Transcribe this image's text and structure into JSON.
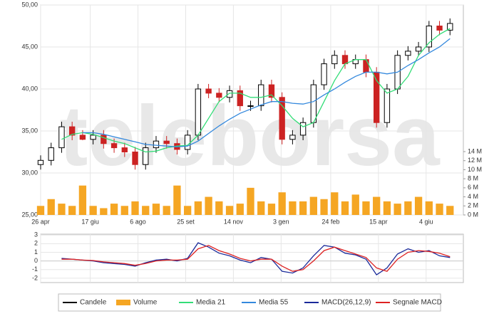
{
  "watermark": "teleborsa",
  "chart_data": [
    {
      "type": "candlestick",
      "x": [
        0,
        11,
        22,
        33,
        44,
        55,
        66,
        77,
        88,
        99,
        110,
        121,
        132,
        143,
        154,
        165,
        176,
        187,
        198,
        209,
        220,
        231,
        242,
        253,
        264,
        275,
        286,
        297,
        308,
        319,
        330,
        341,
        352,
        363,
        374,
        385,
        396,
        407,
        418,
        429
      ],
      "xlim": [
        0,
        443
      ],
      "xticks": [
        {
          "value": 0,
          "label": "26 apr"
        },
        {
          "value": 52,
          "label": "17 giu"
        },
        {
          "value": 102,
          "label": "6 ago"
        },
        {
          "value": 152,
          "label": "25 set"
        },
        {
          "value": 202,
          "label": "14 nov"
        },
        {
          "value": 252,
          "label": "3 gen"
        },
        {
          "value": 304,
          "label": "24 feb"
        },
        {
          "value": 354,
          "label": "15 apr"
        },
        {
          "value": 404,
          "label": "4 giu"
        }
      ],
      "ylim": [
        25,
        50
      ],
      "yticks": [
        {
          "value": 50,
          "label": "50,00"
        },
        {
          "value": 45,
          "label": "45,00"
        },
        {
          "value": 40,
          "label": "40,00"
        },
        {
          "value": 35,
          "label": "35,00"
        },
        {
          "value": 30,
          "label": "30,00"
        },
        {
          "value": 25,
          "label": "25,00"
        }
      ],
      "y2lim": [
        0,
        14
      ],
      "y2ticks": [
        {
          "value": 14,
          "label": "14 M"
        },
        {
          "value": 12,
          "label": "12 M"
        },
        {
          "value": 10,
          "label": "10 M"
        },
        {
          "value": 8,
          "label": "8 M"
        },
        {
          "value": 6,
          "label": "6 M"
        },
        {
          "value": 4,
          "label": "4 M"
        },
        {
          "value": 2,
          "label": "2 M"
        },
        {
          "value": 0,
          "label": "0 M"
        }
      ],
      "grid": true,
      "series": [
        {
          "name": "Candele",
          "color": "#000000",
          "down_color": "#cc2222",
          "open": [
            31,
            31.5,
            33,
            35.5,
            34.5,
            34,
            34.5,
            33.5,
            33,
            32.5,
            31,
            33,
            33.8,
            33.5,
            32.8,
            34.5,
            40,
            39.5,
            39,
            39.8,
            38,
            38,
            40.5,
            39,
            34,
            34.5,
            36,
            40.5,
            43,
            44,
            43,
            43.5,
            42,
            36,
            40,
            44,
            44.5,
            45,
            47.5,
            47
          ],
          "high": [
            32.1,
            33.6,
            36.1,
            36.1,
            35.1,
            35.1,
            35.1,
            34.1,
            33.6,
            33.1,
            33.6,
            34.4,
            34.4,
            34.1,
            35.1,
            40.6,
            40.6,
            40.1,
            40.4,
            40.4,
            38.6,
            41.1,
            41.1,
            39.6,
            35.1,
            36.6,
            41.1,
            43.6,
            44.6,
            44.6,
            44.1,
            44.1,
            42.6,
            40.6,
            44.6,
            45.1,
            45.6,
            48.1,
            48.1,
            48.4
          ],
          "low": [
            30.4,
            30.9,
            32.4,
            33.9,
            33.9,
            33.4,
            32.9,
            32.4,
            31.9,
            30.4,
            30.4,
            32.4,
            32.9,
            32.2,
            32.2,
            33.9,
            38.9,
            38.4,
            38.4,
            37.4,
            37.4,
            37.4,
            38.4,
            33.4,
            33.4,
            33.9,
            35.4,
            39.9,
            42.4,
            42.4,
            42.4,
            41.4,
            35.4,
            35.4,
            39.4,
            43.4,
            43.9,
            44.4,
            46.4,
            46.4
          ],
          "close": [
            31.5,
            33,
            35.5,
            34.5,
            34,
            34.5,
            33.5,
            33,
            32.5,
            31,
            33,
            33.8,
            33.5,
            32.8,
            34.5,
            40,
            39.5,
            39,
            39.8,
            38,
            38,
            40.5,
            39,
            34,
            34.5,
            36,
            40.5,
            43,
            44,
            43,
            43.5,
            42,
            36,
            40,
            44,
            44.5,
            45,
            47.5,
            47,
            47.8
          ]
        },
        {
          "name": "Volume",
          "color": "#f5a623",
          "axis": "y2",
          "values": [
            2,
            3.5,
            2.5,
            2,
            6.5,
            2,
            1.5,
            2.5,
            2,
            3,
            2,
            2.5,
            2,
            6.5,
            2,
            3,
            4,
            3,
            2,
            2.5,
            6,
            3,
            2.5,
            5,
            3,
            3,
            4,
            3.5,
            5,
            3,
            4.5,
            3,
            4,
            3,
            2.5,
            3,
            4,
            3,
            2.5,
            2
          ]
        },
        {
          "name": "Media 21",
          "color": "#33dd77",
          "values": [
            null,
            null,
            34,
            34.6,
            34.8,
            34.6,
            34.2,
            33.8,
            33.5,
            33,
            32.5,
            32.6,
            33,
            33.2,
            33.3,
            34.5,
            36.5,
            38.5,
            39.5,
            39.5,
            39,
            39,
            39.3,
            38,
            36.5,
            35.5,
            36,
            38.5,
            41,
            43,
            43.5,
            43.5,
            41,
            39.5,
            40,
            41.5,
            44,
            45.5,
            46.5,
            47.2
          ]
        },
        {
          "name": "Media 55",
          "color": "#3388dd",
          "values": [
            null,
            null,
            null,
            null,
            34.8,
            34.8,
            34.6,
            34.3,
            34,
            33.7,
            33.4,
            33.3,
            33.2,
            33.1,
            33.2,
            33.8,
            34.7,
            35.6,
            36.4,
            37.1,
            37.6,
            38.1,
            38.5,
            38.5,
            38.3,
            38.2,
            38.5,
            39.3,
            40,
            40.8,
            41.5,
            42,
            42,
            41.8,
            42,
            42.8,
            43.5,
            44.3,
            45,
            46
          ]
        }
      ]
    },
    {
      "type": "line",
      "x": [
        0,
        11,
        22,
        33,
        44,
        55,
        66,
        77,
        88,
        99,
        110,
        121,
        132,
        143,
        154,
        165,
        176,
        187,
        198,
        209,
        220,
        231,
        242,
        253,
        264,
        275,
        286,
        297,
        308,
        319,
        330,
        341,
        352,
        363,
        374,
        385,
        396,
        407,
        418,
        429
      ],
      "xlim": [
        0,
        443
      ],
      "ylim": [
        -2.5,
        3.1
      ],
      "yticks": [
        3,
        2,
        1,
        0,
        -1,
        -2
      ],
      "grid": true,
      "series": [
        {
          "name": "MACD(26,12,9)",
          "color": "#1a2a9a",
          "values": [
            null,
            null,
            0.3,
            0.2,
            0.1,
            0,
            -0.2,
            -0.3,
            -0.4,
            -0.6,
            -0.2,
            0.1,
            0.2,
            0,
            0.3,
            2.1,
            1.6,
            0.9,
            0.6,
            0.1,
            -0.2,
            0.4,
            0.2,
            -1.2,
            -1.4,
            -0.8,
            0.6,
            1.8,
            1.6,
            0.9,
            0.7,
            0.2,
            -1.6,
            -0.8,
            0.8,
            1.4,
            1.0,
            1.2,
            0.6,
            0.4
          ]
        },
        {
          "name": "Segnale MACD",
          "color": "#dd2222",
          "values": [
            null,
            null,
            0.2,
            0.2,
            0.1,
            0.05,
            -0.1,
            -0.2,
            -0.3,
            -0.5,
            -0.3,
            0,
            0.1,
            0.1,
            0.2,
            1.4,
            1.8,
            1.2,
            0.8,
            0.3,
            0,
            0.2,
            0.2,
            -0.6,
            -1.2,
            -1.0,
            0,
            1.2,
            1.6,
            1.2,
            0.8,
            0.4,
            -0.8,
            -1.2,
            0.2,
            1.0,
            1.2,
            1.1,
            0.9,
            0.5
          ]
        }
      ]
    }
  ]
}
